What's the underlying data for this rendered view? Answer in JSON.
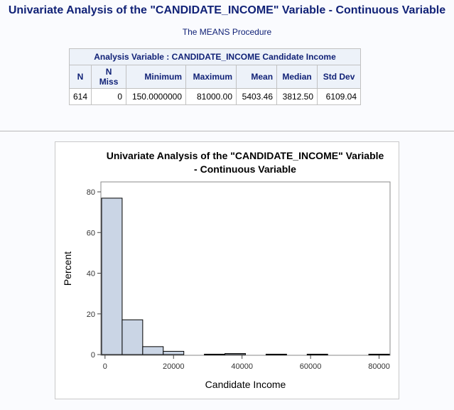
{
  "page": {
    "title": "Univariate Analysis of the \"CANDIDATE_INCOME\" Variable - Continuous Variable",
    "procedure": "The MEANS Procedure"
  },
  "means_table": {
    "caption": "Analysis Variable : CANDIDATE_INCOME Candidate Income",
    "headers": [
      "N",
      "N Miss",
      "Minimum",
      "Maximum",
      "Mean",
      "Median",
      "Std Dev"
    ],
    "row": [
      "614",
      "0",
      "150.0000000",
      "81000.00",
      "5403.46",
      "3812.50",
      "6109.04"
    ]
  },
  "chart_data": {
    "type": "bar",
    "title": "Univariate Analysis of the \"CANDIDATE_INCOME\" Variable",
    "subtitle": "- Continuous Variable",
    "xlabel": "Candidate Income",
    "ylabel": "Percent",
    "bin_width": 6000,
    "bins": [
      {
        "start": -1000,
        "end": 5000,
        "value": 76.9
      },
      {
        "start": 5000,
        "end": 11000,
        "value": 17.1
      },
      {
        "start": 11000,
        "end": 17000,
        "value": 3.9
      },
      {
        "start": 17000,
        "end": 23000,
        "value": 1.6
      },
      {
        "start": 29000,
        "end": 35000,
        "value": 0.2
      },
      {
        "start": 35000,
        "end": 41000,
        "value": 0.5
      },
      {
        "start": 47000,
        "end": 53000,
        "value": 0.2
      },
      {
        "start": 59000,
        "end": 65000,
        "value": 0.2
      },
      {
        "start": 77000,
        "end": 83000,
        "value": 0.2
      }
    ],
    "xlim": [
      -1000,
      83000
    ],
    "ylim": [
      0,
      80
    ],
    "xticks": [
      0,
      20000,
      40000,
      60000,
      80000
    ],
    "xtick_labels": [
      "0",
      "20000",
      "40000",
      "60000",
      "80000"
    ],
    "yticks": [
      0,
      20,
      40,
      60,
      80
    ],
    "ytick_labels": [
      "0",
      "20",
      "40",
      "60",
      "80"
    ],
    "grid": false,
    "colors": {
      "fill": "#cad5e5",
      "stroke": "#000000",
      "frame": "#888888"
    }
  }
}
